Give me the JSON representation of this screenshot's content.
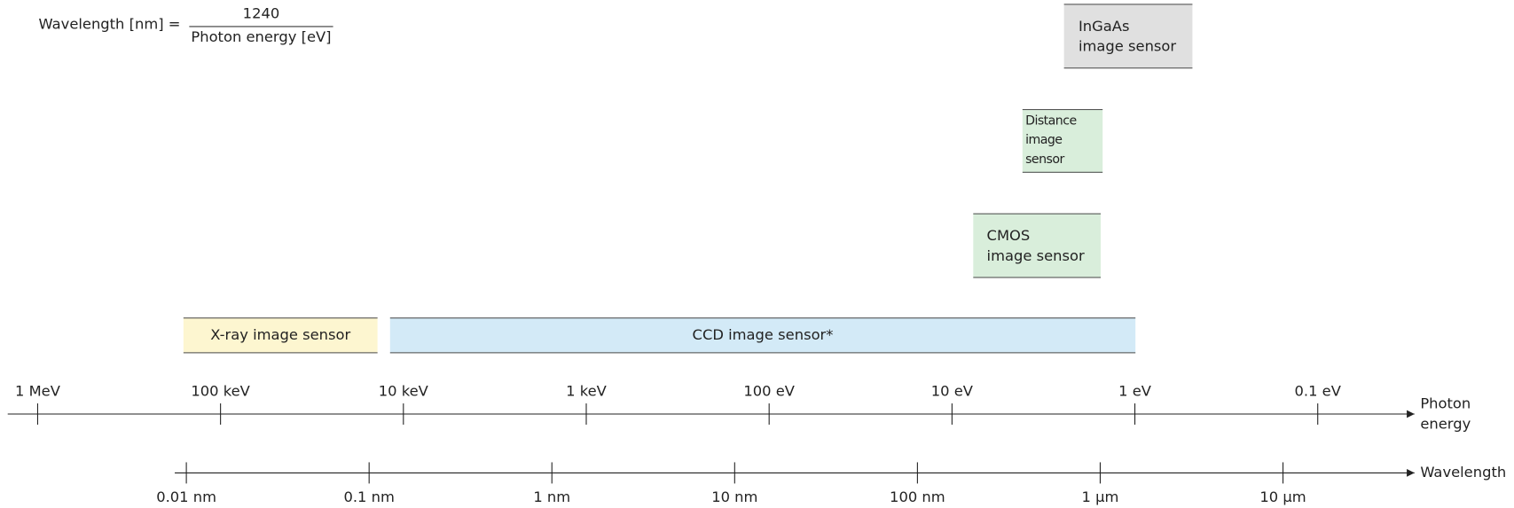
{
  "formula": {
    "lhs": "Wavelength [nm] =",
    "numerator": "1240",
    "denominator": "Photon energy [eV]"
  },
  "sensors": [
    {
      "lines": [
        "InGaAs",
        "image sensor"
      ]
    },
    {
      "lines": [
        "Distance",
        "image sensor"
      ]
    },
    {
      "lines": [
        "CMOS",
        "image sensor"
      ]
    },
    {
      "lines": [
        "X-ray image sensor"
      ]
    },
    {
      "lines": [
        "CCD image sensor*"
      ]
    }
  ],
  "energy_axis": {
    "label": [
      "Photon",
      "energy"
    ],
    "ticks": [
      "1 MeV",
      "100 keV",
      "10 keV",
      "1 keV",
      "100 eV",
      "10 eV",
      "1 eV",
      "0.1 eV"
    ]
  },
  "wavelength_axis": {
    "label": "Wavelength",
    "ticks": [
      "0.01 nm",
      "0.1 nm",
      "1 nm",
      "10 nm",
      "100 nm",
      "1 μm",
      "10 μm"
    ]
  }
}
